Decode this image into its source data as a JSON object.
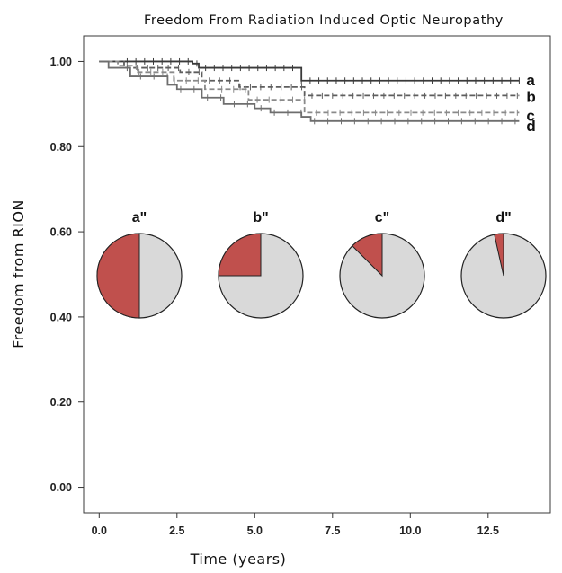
{
  "chart_data": {
    "type": "line",
    "title": "Freedom From Radiation Induced Optic Neuropathy",
    "xlabel": "Time (years)",
    "ylabel": "Freedom from RION",
    "xlim": [
      -0.5,
      14.5
    ],
    "ylim": [
      -0.06,
      1.06
    ],
    "xticks": [
      0.0,
      2.5,
      5.0,
      7.5,
      10.0,
      12.5
    ],
    "xtick_labels": [
      "0.0",
      "2.5",
      "5.0",
      "7.5",
      "10.0",
      "12.5"
    ],
    "yticks": [
      0.0,
      0.2,
      0.4,
      0.6,
      0.8,
      1.0
    ],
    "ytick_labels": [
      "0.00",
      "0.20",
      "0.40",
      "0.60",
      "0.80",
      "1.00"
    ],
    "grid": false,
    "series": [
      {
        "name": "a",
        "color": "#3a3a3a",
        "dashed": false,
        "x": [
          0,
          3.0,
          3.2,
          6.5,
          13.5
        ],
        "y": [
          1.0,
          0.995,
          0.985,
          0.955,
          0.955
        ]
      },
      {
        "name": "b",
        "color": "#5e5e5e",
        "dashed": true,
        "x": [
          0,
          0.8,
          2.6,
          3.3,
          4.5,
          6.6,
          13.5
        ],
        "y": [
          1.0,
          0.985,
          0.975,
          0.955,
          0.94,
          0.92,
          0.92
        ]
      },
      {
        "name": "c",
        "color": "#8a8a8a",
        "dashed": true,
        "x": [
          0,
          0.6,
          1.2,
          2.4,
          3.4,
          4.8,
          6.6,
          13.5
        ],
        "y": [
          1.0,
          0.99,
          0.975,
          0.955,
          0.935,
          0.91,
          0.88,
          0.88
        ]
      },
      {
        "name": "d",
        "color": "#6e6e6e",
        "dashed": false,
        "x": [
          0,
          0.3,
          1.0,
          2.2,
          2.5,
          3.3,
          4.0,
          5.0,
          5.5,
          6.5,
          6.8,
          13.5
        ],
        "y": [
          1.0,
          0.985,
          0.965,
          0.945,
          0.935,
          0.915,
          0.9,
          0.89,
          0.88,
          0.87,
          0.86,
          0.86
        ]
      }
    ],
    "pies": [
      {
        "label": "a\"",
        "fraction": 0.5
      },
      {
        "label": "b\"",
        "fraction": 0.25
      },
      {
        "label": "c\"",
        "fraction": 0.125
      },
      {
        "label": "d\"",
        "fraction": 0.035
      }
    ],
    "pie_colors": {
      "highlight": "#c0504d",
      "base": "#d9d9d9",
      "outline": "#222222"
    }
  }
}
